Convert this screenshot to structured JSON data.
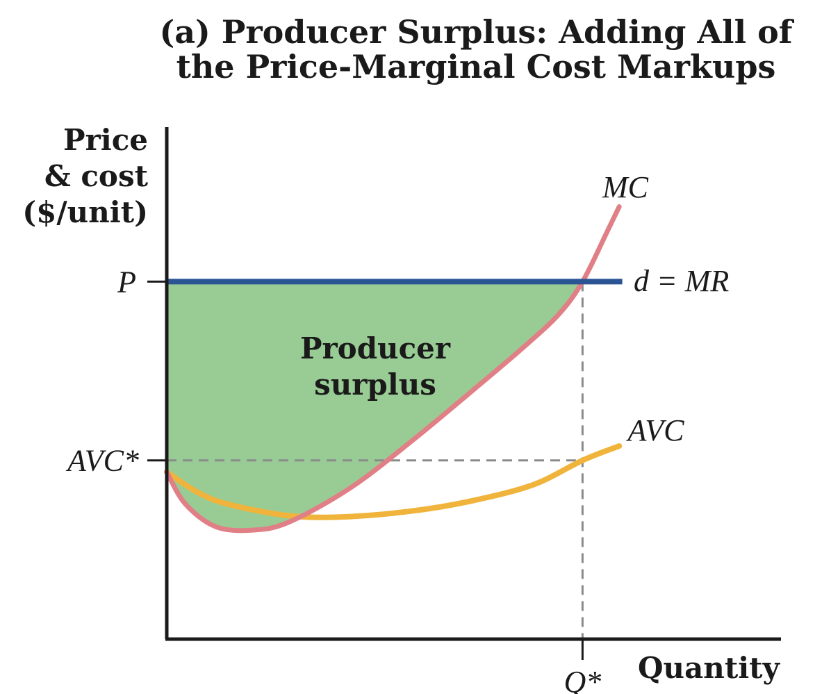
{
  "chart_data": {
    "type": "line",
    "title_lines": [
      "(a) Producer Surplus: Adding All of",
      "the Price-Marginal Cost Markups"
    ],
    "ylabel_lines": [
      "Price",
      "& cost",
      "($/unit)"
    ],
    "xlabel": "Quantity",
    "y_ticks": [
      {
        "label": "P",
        "value": 0.62
      },
      {
        "label": "AVC*",
        "value": 0.31
      }
    ],
    "x_ticks": [
      {
        "label": "Q*",
        "value": 0.68
      }
    ],
    "series": [
      {
        "name": "MC",
        "color": "#e07f86",
        "points": [
          [
            0,
            0.29
          ],
          [
            0.03,
            0.235
          ],
          [
            0.08,
            0.195
          ],
          [
            0.14,
            0.189
          ],
          [
            0.2,
            0.203
          ],
          [
            0.3,
            0.262
          ],
          [
            0.4,
            0.343
          ],
          [
            0.5,
            0.431
          ],
          [
            0.58,
            0.503
          ],
          [
            0.64,
            0.562
          ],
          [
            0.68,
            0.62
          ],
          [
            0.72,
            0.706
          ],
          [
            0.74,
            0.75
          ]
        ]
      },
      {
        "name": "AVC",
        "color": "#f0b43c",
        "points": [
          [
            0,
            0.29
          ],
          [
            0.05,
            0.255
          ],
          [
            0.1,
            0.234
          ],
          [
            0.2,
            0.214
          ],
          [
            0.29,
            0.212
          ],
          [
            0.4,
            0.222
          ],
          [
            0.5,
            0.24
          ],
          [
            0.6,
            0.268
          ],
          [
            0.68,
            0.31
          ],
          [
            0.74,
            0.335
          ]
        ]
      },
      {
        "name": "d = MR",
        "color": "#2b5494",
        "points": [
          [
            0,
            0.62
          ],
          [
            0.745,
            0.62
          ]
        ]
      }
    ],
    "annotations": [
      {
        "text_lines": [
          "Producer",
          "surplus"
        ],
        "fill": "#99cc94"
      }
    ]
  }
}
